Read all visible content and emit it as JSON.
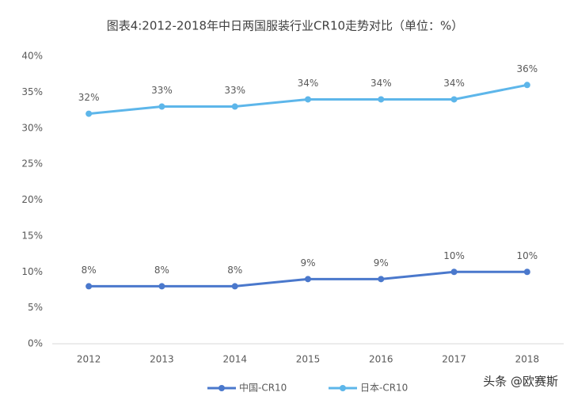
{
  "chart_data": {
    "type": "line",
    "title": "图表4:2012-2018年中日两国服装行业CR10走势对比（单位：%）",
    "categories": [
      "2012",
      "2013",
      "2014",
      "2015",
      "2016",
      "2017",
      "2018"
    ],
    "series": [
      {
        "name": "中国-CR10",
        "color": "#4a78cc",
        "values": [
          8,
          8,
          8,
          9,
          9,
          10,
          10
        ],
        "value_labels": [
          "8%",
          "8%",
          "8%",
          "9%",
          "9%",
          "10%",
          "10%"
        ]
      },
      {
        "name": "日本-CR10",
        "color": "#5db6ea",
        "values": [
          32,
          33,
          33,
          34,
          34,
          34,
          36
        ],
        "value_labels": [
          "32%",
          "33%",
          "33%",
          "34%",
          "34%",
          "34%",
          "36%"
        ]
      }
    ],
    "ylim": [
      0,
      40
    ],
    "yticks": [
      {
        "value": 0,
        "label": "0%"
      },
      {
        "value": 5,
        "label": "5%"
      },
      {
        "value": 10,
        "label": "10%"
      },
      {
        "value": 15,
        "label": "15%"
      },
      {
        "value": 20,
        "label": "20%"
      },
      {
        "value": 25,
        "label": "25%"
      },
      {
        "value": 30,
        "label": "30%"
      },
      {
        "value": 35,
        "label": "35%"
      },
      {
        "value": 40,
        "label": "40%"
      }
    ],
    "grid": false,
    "legend": "bottom",
    "watermark": "头条 @欧赛斯"
  }
}
